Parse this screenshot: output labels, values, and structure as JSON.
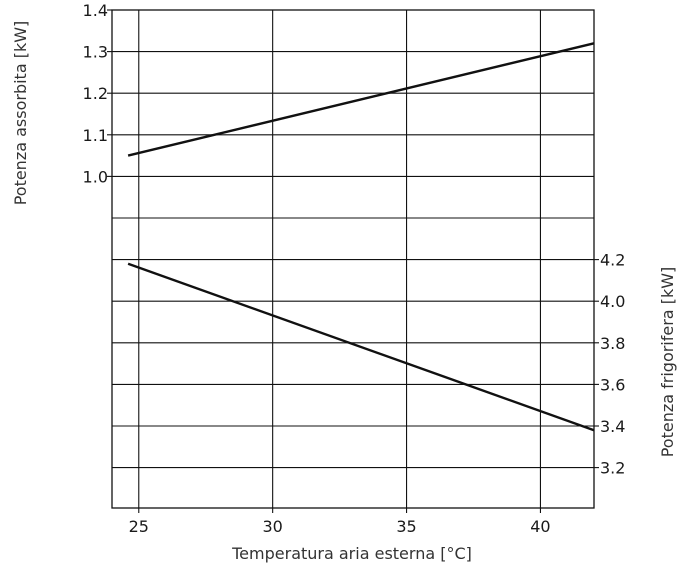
{
  "chart_data": {
    "type": "line",
    "xlabel": "Temperatura aria esterna [°C]",
    "x_ticks": [
      25,
      30,
      35,
      40
    ],
    "xlim": [
      24.0,
      42.0
    ],
    "grid": true,
    "left_axis": {
      "label": "Potenza assorbita [kW]",
      "ticks": [
        "1.4",
        "1.3",
        "1.2",
        "1.1",
        "1.0"
      ],
      "tick_values": [
        1.4,
        1.3,
        1.2,
        1.1,
        1.0
      ]
    },
    "right_axis": {
      "label": "Potenza frigorifera [kW]",
      "ticks": [
        "4.2",
        "4.0",
        "3.8",
        "3.6",
        "3.4",
        "3.2"
      ],
      "tick_values": [
        4.2,
        4.0,
        3.8,
        3.6,
        3.4,
        3.2
      ]
    },
    "series": [
      {
        "axis": "left",
        "color": "#111111",
        "x": [
          24.6,
          42.0
        ],
        "y": [
          1.05,
          1.32
        ]
      },
      {
        "axis": "right",
        "color": "#111111",
        "x": [
          24.6,
          42.0
        ],
        "y": [
          4.18,
          3.38
        ]
      }
    ]
  }
}
